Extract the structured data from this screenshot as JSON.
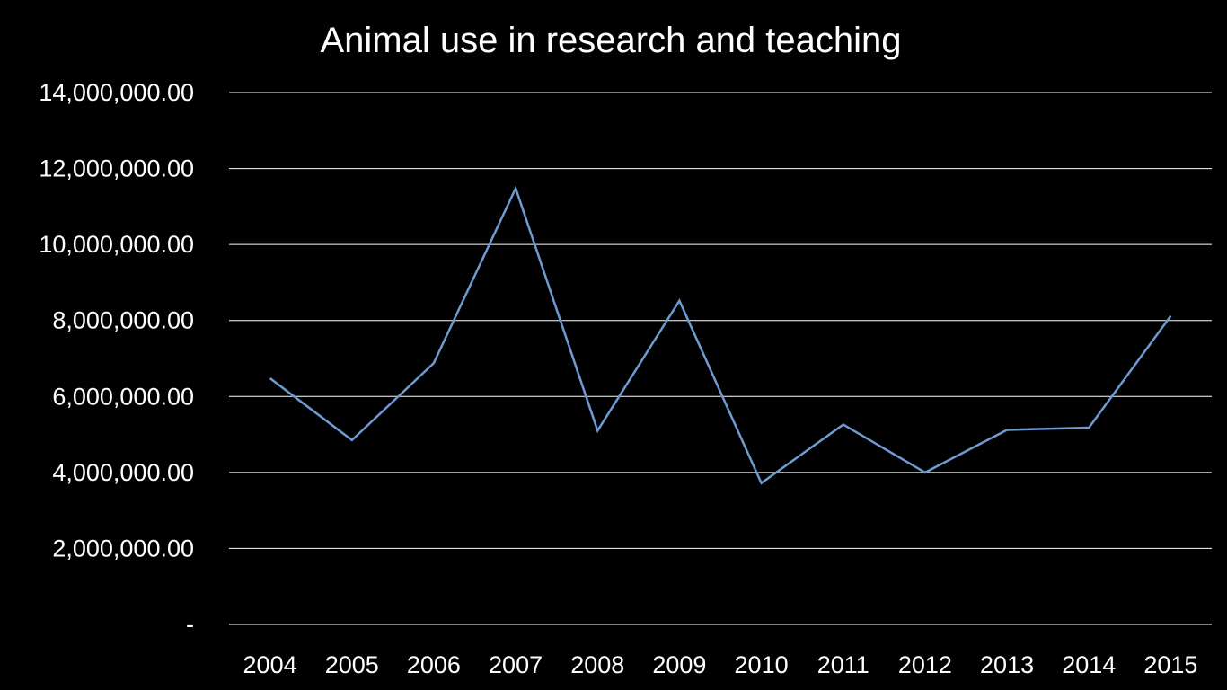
{
  "chart_data": {
    "type": "line",
    "title": "Animal use in research and teaching",
    "xlabel": "",
    "ylabel": "",
    "categories": [
      "2004",
      "2005",
      "2006",
      "2007",
      "2008",
      "2009",
      "2010",
      "2011",
      "2012",
      "2013",
      "2014",
      "2015"
    ],
    "series": [
      {
        "values": [
          6480000,
          4850000,
          6880000,
          11480000,
          5100000,
          8520000,
          3720000,
          5260000,
          4000000,
          5120000,
          5180000,
          8120000
        ],
        "color": "#6d9bd2"
      }
    ],
    "ylim": [
      0,
      14000000
    ],
    "y_ticks": [
      {
        "value": 0,
        "label": "-"
      },
      {
        "value": 2000000,
        "label": "2,000,000.00"
      },
      {
        "value": 4000000,
        "label": "4,000,000.00"
      },
      {
        "value": 6000000,
        "label": "6,000,000.00"
      },
      {
        "value": 8000000,
        "label": "8,000,000.00"
      },
      {
        "value": 10000000,
        "label": "10,000,000.00"
      },
      {
        "value": 12000000,
        "label": "12,000,000.00"
      },
      {
        "value": 14000000,
        "label": "14,000,000.00"
      }
    ],
    "grid": true,
    "legend": "none",
    "background_color": "#000000",
    "text_color": "#ffffff",
    "grid_color": "#ffffff"
  }
}
